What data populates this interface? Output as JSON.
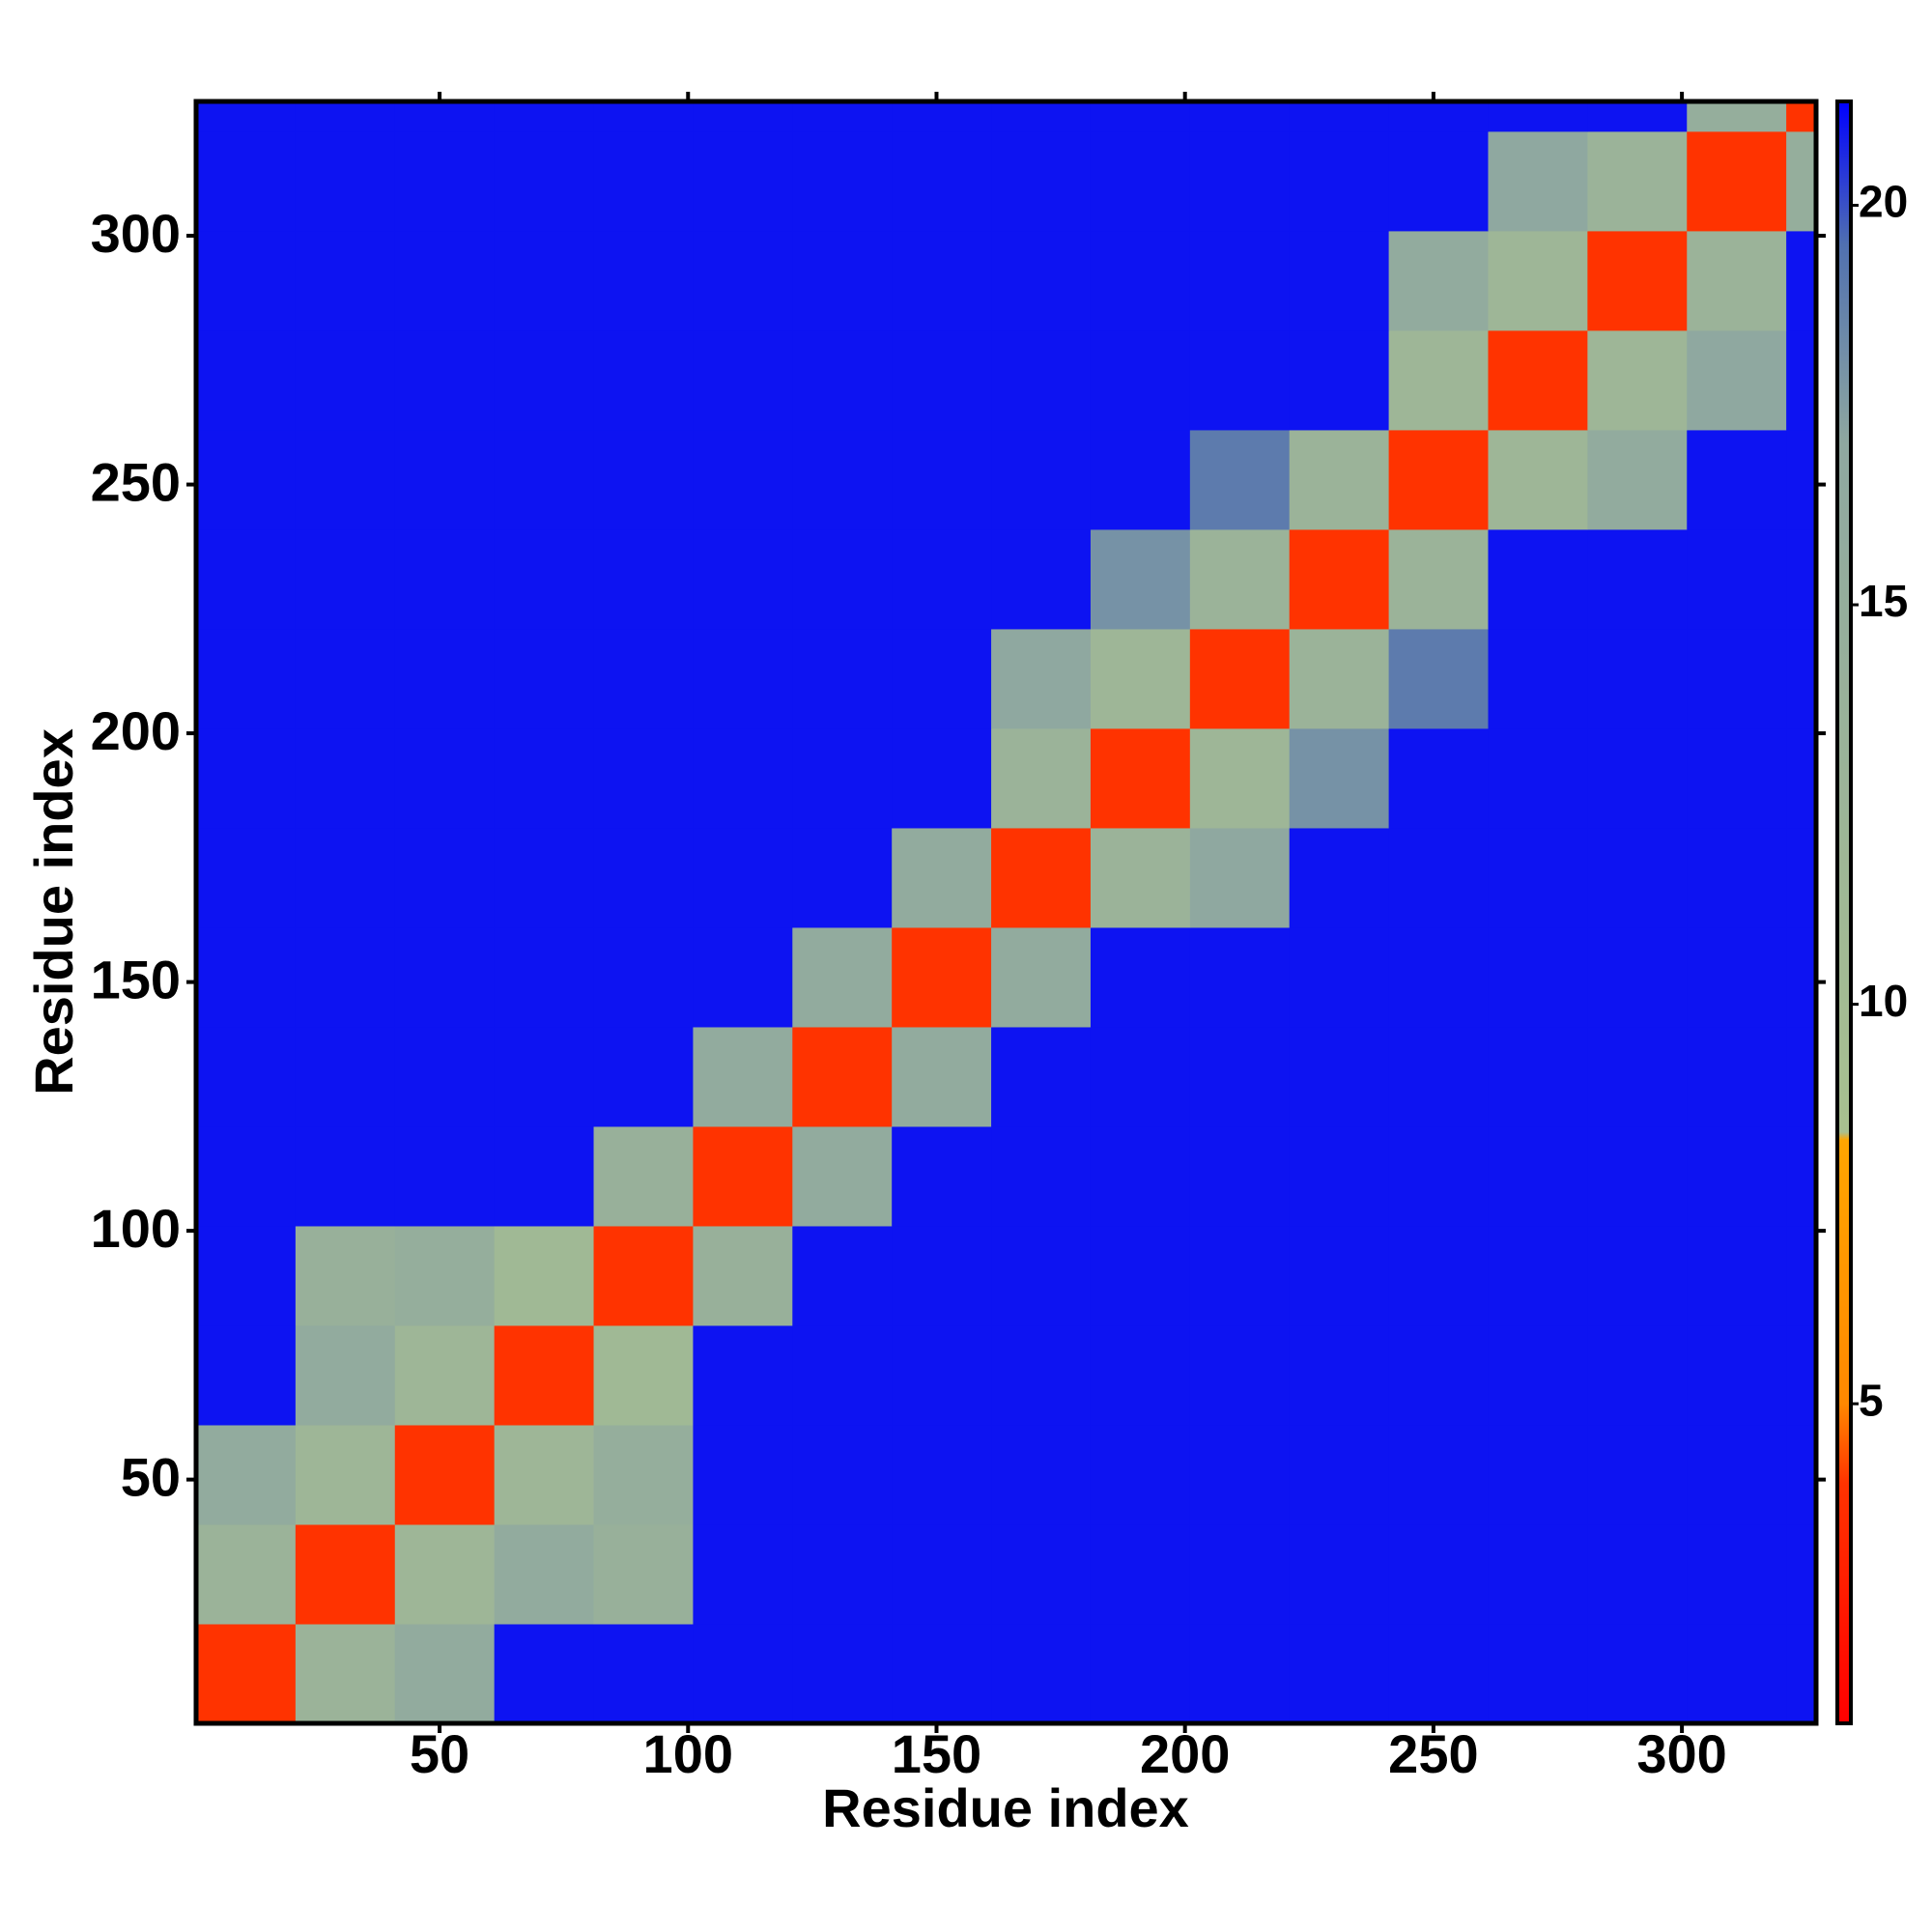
{
  "chart_data": {
    "type": "heatmap",
    "x_label": "Residue index",
    "y_label": "Residue index",
    "bins": [
      1,
      21,
      41,
      61,
      81,
      101,
      121,
      141,
      161,
      181,
      201,
      221,
      241,
      261,
      281,
      301,
      321,
      327
    ],
    "xlim": [
      1,
      327
    ],
    "ylim": [
      1,
      327
    ],
    "xticks": [
      50,
      100,
      150,
      200,
      250,
      300
    ],
    "yticks": [
      50,
      100,
      150,
      200,
      250,
      300
    ],
    "values": [
      [
        4,
        13,
        16,
        21,
        21,
        21,
        21,
        21,
        21,
        21,
        21,
        21,
        21,
        21,
        21,
        21,
        21
      ],
      [
        13,
        4,
        12,
        16,
        14,
        21,
        21,
        21,
        21,
        21,
        21,
        21,
        21,
        21,
        21,
        21,
        21
      ],
      [
        16,
        12,
        4,
        12,
        15,
        21,
        21,
        21,
        21,
        21,
        21,
        21,
        21,
        21,
        21,
        21,
        21
      ],
      [
        21,
        16,
        12,
        4,
        11,
        21,
        21,
        21,
        21,
        21,
        21,
        21,
        21,
        21,
        21,
        21,
        21
      ],
      [
        21,
        14,
        15,
        11,
        4,
        14,
        21,
        21,
        21,
        21,
        21,
        21,
        21,
        21,
        21,
        21,
        21
      ],
      [
        21,
        21,
        21,
        21,
        14,
        4,
        16,
        21,
        21,
        21,
        21,
        21,
        21,
        21,
        21,
        21,
        21
      ],
      [
        21,
        21,
        21,
        21,
        21,
        16,
        4,
        16,
        21,
        21,
        21,
        21,
        21,
        21,
        21,
        21,
        21
      ],
      [
        21,
        21,
        21,
        21,
        21,
        21,
        16,
        4,
        16,
        21,
        21,
        21,
        21,
        21,
        21,
        21,
        21
      ],
      [
        21,
        21,
        21,
        21,
        21,
        21,
        21,
        16,
        4,
        13,
        17,
        21,
        21,
        21,
        21,
        21,
        21
      ],
      [
        21,
        21,
        21,
        21,
        21,
        21,
        21,
        21,
        13,
        4,
        12,
        18,
        21,
        21,
        21,
        21,
        21
      ],
      [
        21,
        21,
        21,
        21,
        21,
        21,
        21,
        21,
        17,
        12,
        4,
        13,
        19,
        21,
        21,
        21,
        21
      ],
      [
        21,
        21,
        21,
        21,
        21,
        21,
        21,
        21,
        21,
        18,
        13,
        4,
        13,
        21,
        21,
        21,
        21
      ],
      [
        21,
        21,
        21,
        21,
        21,
        21,
        21,
        21,
        21,
        21,
        19,
        13,
        4,
        12,
        16,
        21,
        21
      ],
      [
        21,
        21,
        21,
        21,
        21,
        21,
        21,
        21,
        21,
        21,
        21,
        21,
        12,
        4,
        12,
        17,
        21
      ],
      [
        21,
        21,
        21,
        21,
        21,
        21,
        21,
        21,
        21,
        21,
        21,
        21,
        16,
        12,
        4,
        13,
        21
      ],
      [
        21,
        21,
        21,
        21,
        21,
        21,
        21,
        21,
        21,
        21,
        21,
        21,
        21,
        17,
        13,
        4,
        15
      ],
      [
        21,
        21,
        21,
        21,
        21,
        21,
        21,
        21,
        21,
        21,
        21,
        21,
        21,
        21,
        21,
        15,
        4
      ]
    ],
    "colorscale": [
      [
        1,
        "#ff0000"
      ],
      [
        4,
        "#ff3300"
      ],
      [
        5,
        "#ff8800"
      ],
      [
        8.3,
        "#ffa500"
      ],
      [
        8.4,
        "#a8c090"
      ],
      [
        17,
        "#8fa8a0"
      ],
      [
        19.5,
        "#5070b0"
      ],
      [
        21.3,
        "#0000ff"
      ]
    ],
    "colorbar_lim": [
      1,
      21.3
    ],
    "colorbar_ticks": [
      5,
      10,
      15,
      20
    ]
  }
}
